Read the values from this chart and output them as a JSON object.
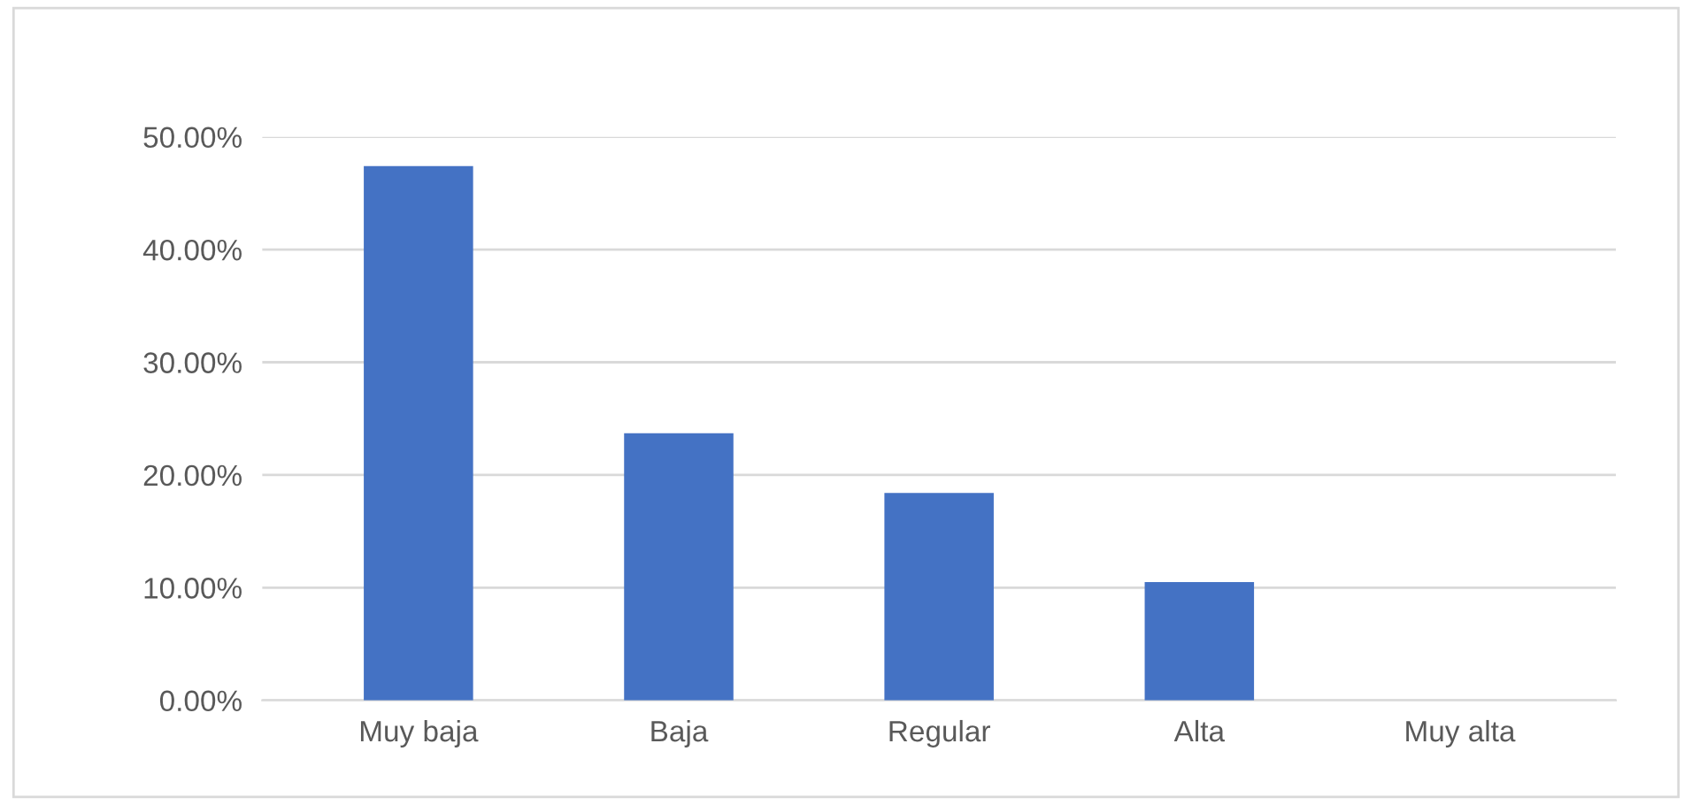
{
  "chart_data": {
    "type": "bar",
    "categories": [
      "Muy baja",
      "Baja",
      "Regular",
      "Alta",
      "Muy alta"
    ],
    "values": [
      47.4,
      23.7,
      18.4,
      10.5,
      0
    ],
    "color": "#4472c4",
    "ylim": [
      0,
      50
    ],
    "yticks": [
      {
        "value": 0,
        "label": "0.00%"
      },
      {
        "value": 10,
        "label": "10.00%"
      },
      {
        "value": 20,
        "label": "20.00%"
      },
      {
        "value": 30,
        "label": "30.00%"
      },
      {
        "value": 40,
        "label": "40.00%"
      },
      {
        "value": 50,
        "label": "50.00%"
      }
    ],
    "grid": "y"
  }
}
